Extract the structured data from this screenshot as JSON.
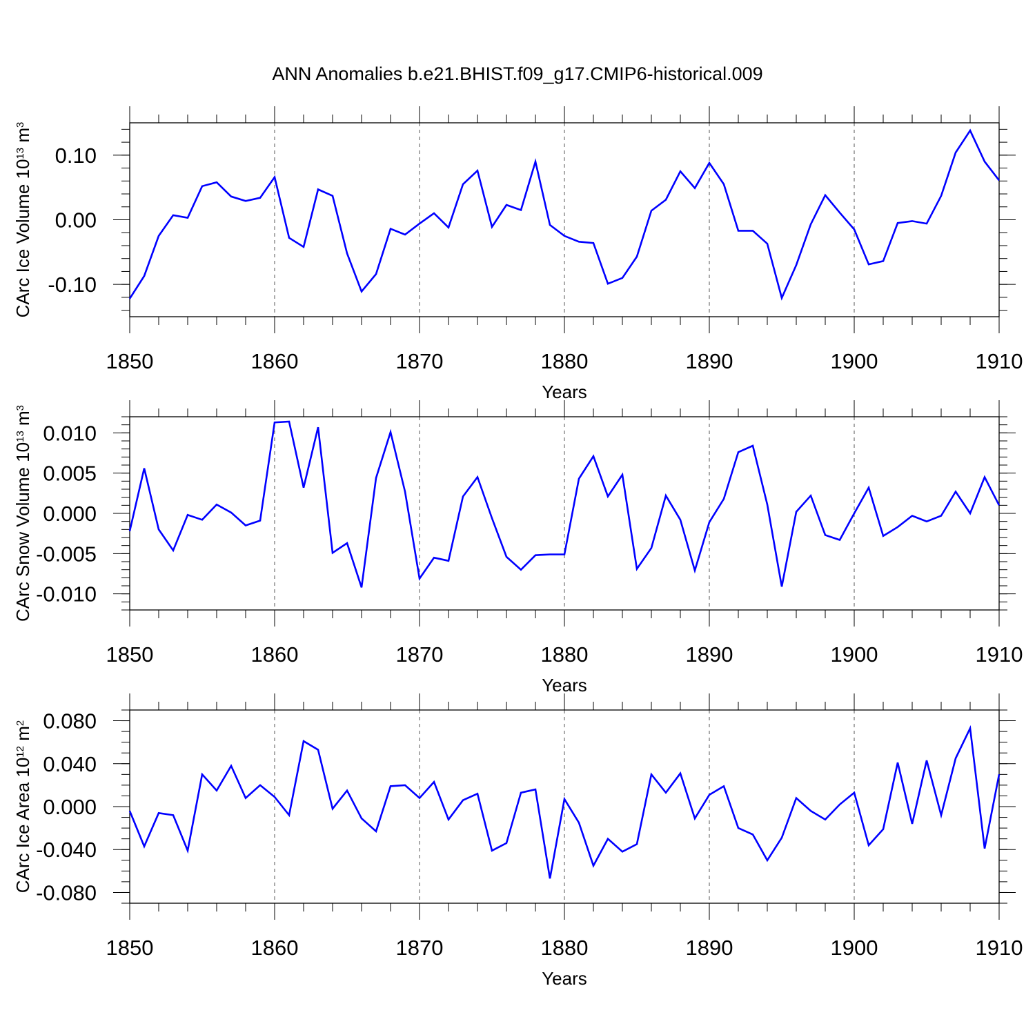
{
  "title": "ANN Anomalies b.e21.BHIST.f09_g17.CMIP6-historical.009",
  "colors": {
    "line": "#0000ff",
    "axis": "#000000",
    "grid": "#555555"
  },
  "chart_data": [
    {
      "type": "line",
      "xlabel": "Years",
      "ylabel": {
        "text": "CArc Ice Volume 10",
        "sup": "13",
        "unit": " m",
        "unit_sup": "3"
      },
      "xlim": [
        1850,
        1910
      ],
      "ylim": [
        -0.15,
        0.15
      ],
      "xticks": [
        "1850",
        "1860",
        "1870",
        "1880",
        "1890",
        "1900",
        "1910"
      ],
      "yticks": [
        {
          "value": -0.1,
          "label": "-0.10"
        },
        {
          "value": 0.0,
          "label": "0.00"
        },
        {
          "value": 0.1,
          "label": "0.10"
        }
      ],
      "y_minor_step": 0.02,
      "x_minor_step": 2,
      "vertical_dashed_grid": true,
      "series": [
        {
          "color": "#0000ff",
          "x": [
            1850,
            1851,
            1852,
            1853,
            1854,
            1855,
            1856,
            1857,
            1858,
            1859,
            1860,
            1861,
            1862,
            1863,
            1864,
            1865,
            1866,
            1867,
            1868,
            1869,
            1870,
            1871,
            1872,
            1873,
            1874,
            1875,
            1876,
            1877,
            1878,
            1879,
            1880,
            1881,
            1882,
            1883,
            1884,
            1885,
            1886,
            1887,
            1888,
            1889,
            1890,
            1891,
            1892,
            1893,
            1894,
            1895,
            1896,
            1897,
            1898,
            1899,
            1900,
            1901,
            1902,
            1903,
            1904,
            1905,
            1906,
            1907,
            1908,
            1909,
            1910
          ],
          "values": [
            -0.122,
            -0.087,
            -0.025,
            0.007,
            0.003,
            0.052,
            0.058,
            0.036,
            0.029,
            0.034,
            0.066,
            -0.028,
            -0.042,
            0.047,
            0.037,
            -0.052,
            -0.111,
            -0.084,
            -0.014,
            -0.023,
            -0.006,
            0.01,
            -0.012,
            0.055,
            0.076,
            -0.011,
            0.023,
            0.015,
            0.09,
            -0.008,
            -0.025,
            -0.034,
            -0.036,
            -0.099,
            -0.09,
            -0.057,
            0.014,
            0.031,
            0.075,
            0.049,
            0.088,
            0.055,
            -0.017,
            -0.017,
            -0.037,
            -0.121,
            -0.07,
            -0.007,
            0.038,
            0.011,
            -0.015,
            -0.069,
            -0.064,
            -0.005,
            -0.002,
            -0.006,
            0.037,
            0.104,
            0.138,
            0.09,
            0.061
          ]
        }
      ]
    },
    {
      "type": "line",
      "xlabel": "Years",
      "ylabel": {
        "text": "CArc Snow Volume 10",
        "sup": "13",
        "unit": " m",
        "unit_sup": "3"
      },
      "xlim": [
        1850,
        1910
      ],
      "ylim": [
        -0.012,
        0.012
      ],
      "xticks": [
        "1850",
        "1860",
        "1870",
        "1880",
        "1890",
        "1900",
        "1910"
      ],
      "yticks": [
        {
          "value": -0.01,
          "label": "-0.010"
        },
        {
          "value": -0.005,
          "label": "-0.005"
        },
        {
          "value": 0.0,
          "label": "0.000"
        },
        {
          "value": 0.005,
          "label": "0.005"
        },
        {
          "value": 0.01,
          "label": "0.010"
        }
      ],
      "y_minor_step": 0.001,
      "x_minor_step": 2,
      "vertical_dashed_grid": true,
      "series": [
        {
          "color": "#0000ff",
          "x": [
            1850,
            1851,
            1852,
            1853,
            1854,
            1855,
            1856,
            1857,
            1858,
            1859,
            1860,
            1861,
            1862,
            1863,
            1864,
            1865,
            1866,
            1867,
            1868,
            1869,
            1870,
            1871,
            1872,
            1873,
            1874,
            1875,
            1876,
            1877,
            1878,
            1879,
            1880,
            1881,
            1882,
            1883,
            1884,
            1885,
            1886,
            1887,
            1888,
            1889,
            1890,
            1891,
            1892,
            1893,
            1894,
            1895,
            1896,
            1897,
            1898,
            1899,
            1900,
            1901,
            1902,
            1903,
            1904,
            1905,
            1906,
            1907,
            1908,
            1909,
            1910
          ],
          "values": [
            -0.0022,
            0.0056,
            -0.002,
            -0.0046,
            -0.0002,
            -0.0008,
            0.0011,
            0.0001,
            -0.0015,
            -0.0009,
            0.0113,
            0.0114,
            0.0032,
            0.0107,
            -0.0049,
            -0.0037,
            -0.0092,
            0.0044,
            0.0101,
            0.0027,
            -0.0081,
            -0.0055,
            -0.0059,
            0.0021,
            0.0045,
            -0.0006,
            -0.0054,
            -0.007,
            -0.0052,
            -0.0051,
            -0.0051,
            0.0043,
            0.0071,
            0.0021,
            0.0048,
            -0.0069,
            -0.0043,
            0.0022,
            -0.0008,
            -0.0071,
            -0.0011,
            0.0018,
            0.0076,
            0.0084,
            0.0011,
            -0.0091,
            0.0002,
            0.0022,
            -0.0027,
            -0.0033,
            0.0,
            0.0032,
            -0.0028,
            -0.0017,
            -0.0003,
            -0.001,
            -0.0003,
            0.0027,
            0.0,
            0.0045,
            0.001
          ]
        }
      ]
    },
    {
      "type": "line",
      "xlabel": "Years",
      "ylabel": {
        "text": "CArc Ice Area 10",
        "sup": "12",
        "unit": " m",
        "unit_sup": "2"
      },
      "xlim": [
        1850,
        1910
      ],
      "ylim": [
        -0.09,
        0.09
      ],
      "xticks": [
        "1850",
        "1860",
        "1870",
        "1880",
        "1890",
        "1900",
        "1910"
      ],
      "yticks": [
        {
          "value": -0.08,
          "label": "-0.080"
        },
        {
          "value": -0.04,
          "label": "-0.040"
        },
        {
          "value": 0.0,
          "label": "0.000"
        },
        {
          "value": 0.04,
          "label": "0.040"
        },
        {
          "value": 0.08,
          "label": "0.080"
        }
      ],
      "y_minor_step": 0.01,
      "x_minor_step": 2,
      "vertical_dashed_grid": true,
      "series": [
        {
          "color": "#0000ff",
          "x": [
            1850,
            1851,
            1852,
            1853,
            1854,
            1855,
            1856,
            1857,
            1858,
            1859,
            1860,
            1861,
            1862,
            1863,
            1864,
            1865,
            1866,
            1867,
            1868,
            1869,
            1870,
            1871,
            1872,
            1873,
            1874,
            1875,
            1876,
            1877,
            1878,
            1879,
            1880,
            1881,
            1882,
            1883,
            1884,
            1885,
            1886,
            1887,
            1888,
            1889,
            1890,
            1891,
            1892,
            1893,
            1894,
            1895,
            1896,
            1897,
            1898,
            1899,
            1900,
            1901,
            1902,
            1903,
            1904,
            1905,
            1906,
            1907,
            1908,
            1909,
            1910
          ],
          "values": [
            -0.004,
            -0.037,
            -0.006,
            -0.008,
            -0.041,
            0.03,
            0.015,
            0.038,
            0.008,
            0.02,
            0.009,
            -0.008,
            0.061,
            0.053,
            -0.002,
            0.015,
            -0.011,
            -0.023,
            0.019,
            0.02,
            0.008,
            0.023,
            -0.012,
            0.006,
            0.012,
            -0.041,
            -0.034,
            0.013,
            0.016,
            -0.067,
            0.007,
            -0.015,
            -0.055,
            -0.03,
            -0.042,
            -0.035,
            0.03,
            0.013,
            0.031,
            -0.011,
            0.011,
            0.019,
            -0.02,
            -0.026,
            -0.05,
            -0.029,
            0.008,
            -0.004,
            -0.012,
            0.002,
            0.013,
            -0.036,
            -0.021,
            0.041,
            -0.016,
            0.043,
            -0.008,
            0.045,
            0.073,
            -0.039,
            0.03
          ]
        }
      ]
    }
  ]
}
